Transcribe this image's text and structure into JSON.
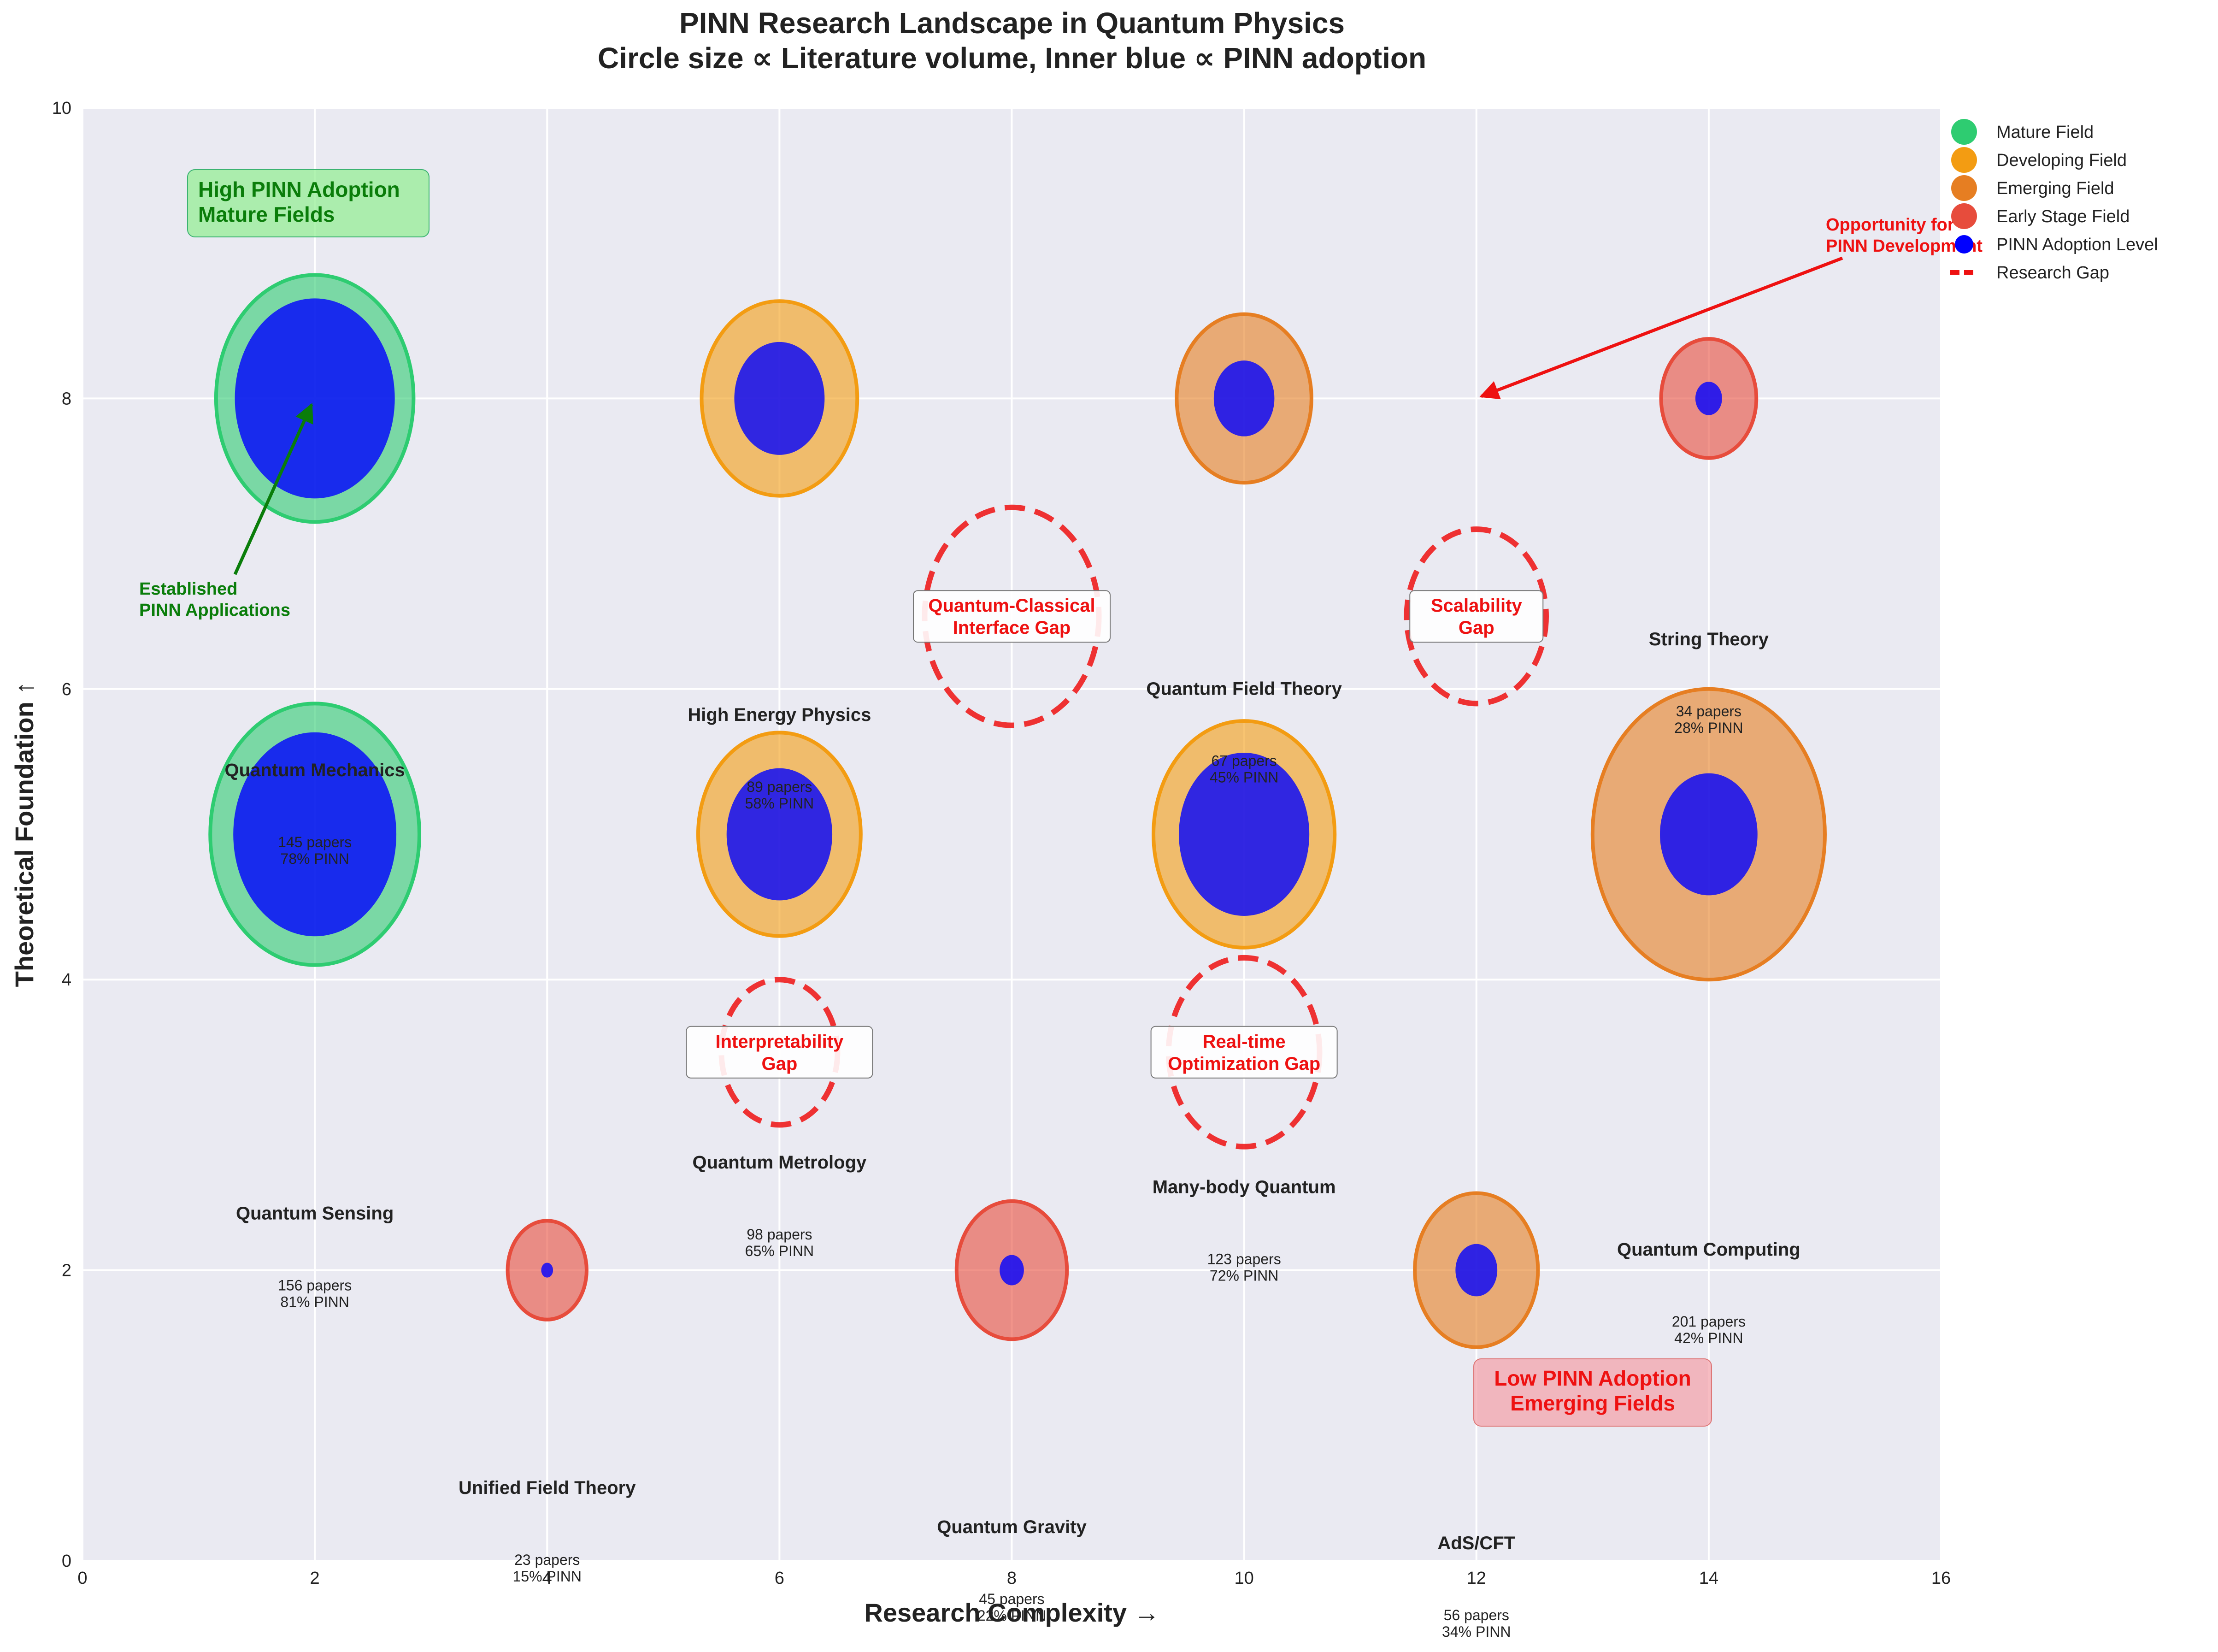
{
  "chart_data": {
    "type": "bubble",
    "title_line1": "PINN Research Landscape in Quantum Physics",
    "title_line2": "Circle size ∝ Literature volume, Inner blue ∝ PINN adoption",
    "xlabel": "Research Complexity →",
    "ylabel": "Theoretical Foundation ↑",
    "xlim": [
      0,
      16
    ],
    "ylim": [
      0,
      10
    ],
    "x_ticks": [
      0,
      2,
      4,
      6,
      8,
      10,
      12,
      14,
      16
    ],
    "y_ticks": [
      0,
      2,
      4,
      6,
      8,
      10
    ],
    "grid": true,
    "legend_position": "upper right, outside plot",
    "category_colors": {
      "Mature Field": "#2ecc71",
      "Developing Field": "#f39c12",
      "Emerging Field": "#e67e22",
      "Early Stage Field": "#e74c3c"
    },
    "pinn_color": "#0000ff",
    "gap_color": "#ee1111",
    "bubbles": [
      {
        "x": 2,
        "y": 8,
        "category": "Mature Field",
        "pinn_fraction": 0.81
      },
      {
        "x": 2,
        "y": 5,
        "category": "Mature Field",
        "pinn_fraction": 0.78
      },
      {
        "x": 6,
        "y": 8,
        "category": "Developing Field",
        "pinn_fraction": 0.58
      },
      {
        "x": 6,
        "y": 5,
        "category": "Developing Field",
        "pinn_fraction": 0.65
      },
      {
        "x": 10,
        "y": 8,
        "category": "Emerging Field",
        "pinn_fraction": 0.45
      },
      {
        "x": 10,
        "y": 5,
        "category": "Developing Field",
        "pinn_fraction": 0.72
      },
      {
        "x": 14,
        "y": 8,
        "category": "Early Stage Field",
        "pinn_fraction": 0.28
      },
      {
        "x": 14,
        "y": 5,
        "category": "Emerging Field",
        "pinn_fraction": 0.42
      },
      {
        "x": 4,
        "y": 2,
        "category": "Early Stage Field",
        "pinn_fraction": 0.15
      },
      {
        "x": 8,
        "y": 2,
        "category": "Early Stage Field",
        "pinn_fraction": 0.22
      },
      {
        "x": 12,
        "y": 2,
        "category": "Emerging Field",
        "pinn_fraction": 0.34
      }
    ],
    "field_labels": [
      {
        "name": "Quantum Mechanics",
        "papers": "145 papers",
        "pinn": "78% PINN",
        "x": 2,
        "y": 5.4
      },
      {
        "name": "Quantum Sensing",
        "papers": "156 papers",
        "pinn": "81% PINN",
        "x": 2,
        "y": 2.35
      },
      {
        "name": "High Energy Physics",
        "papers": "89 papers",
        "pinn": "58% PINN",
        "x": 6,
        "y": 5.78
      },
      {
        "name": "Quantum Metrology",
        "papers": "98 papers",
        "pinn": "65% PINN",
        "x": 6,
        "y": 2.7
      },
      {
        "name": "Quantum Field Theory",
        "papers": "67 papers",
        "pinn": "45% PINN",
        "x": 10,
        "y": 5.96
      },
      {
        "name": "Many-body Quantum",
        "papers": "123 papers",
        "pinn": "72% PINN",
        "x": 10,
        "y": 2.53
      },
      {
        "name": "String Theory",
        "papers": "34 papers",
        "pinn": "28% PINN",
        "x": 14,
        "y": 6.3
      },
      {
        "name": "Quantum Computing",
        "papers": "201 papers",
        "pinn": "42% PINN",
        "x": 14,
        "y": 2.1
      },
      {
        "name": "Unified Field Theory",
        "papers": "23 papers",
        "pinn": "15% PINN",
        "x": 4,
        "y": 0.46
      },
      {
        "name": "Quantum Gravity",
        "papers": "45 papers",
        "pinn": "22% PINN",
        "x": 8,
        "y": 0.19
      },
      {
        "name": "AdS/CFT",
        "papers": "56 papers",
        "pinn": "34% PINN",
        "x": 12,
        "y": 0.08
      }
    ],
    "research_gaps": [
      {
        "label_line1": "Quantum-Classical",
        "label_line2": "Interface Gap",
        "x": 8,
        "y": 6.5
      },
      {
        "label_line1": "Scalability",
        "label_line2": "Gap",
        "x": 12,
        "y": 6.5
      },
      {
        "label_line1": "Interpretability",
        "label_line2": "Gap",
        "x": 6,
        "y": 3.5
      },
      {
        "label_line1": "Real-time",
        "label_line2": "Optimization Gap",
        "x": 10,
        "y": 3.5
      }
    ],
    "annotations": {
      "high_adoption_line1": "High PINN Adoption",
      "high_adoption_line2": "Mature Fields",
      "low_adoption_line1": "Low PINN Adoption",
      "low_adoption_line2": "Emerging Fields",
      "established_line1": "Established",
      "established_line2": "PINN Applications",
      "opportunity_line1": "Opportunity for",
      "opportunity_line2": "PINN Development"
    },
    "legend": [
      {
        "label": "Mature Field",
        "color": "#2ecc71",
        "kind": "circle"
      },
      {
        "label": "Developing Field",
        "color": "#f39c12",
        "kind": "circle"
      },
      {
        "label": "Emerging Field",
        "color": "#e67e22",
        "kind": "circle"
      },
      {
        "label": "Early Stage Field",
        "color": "#e74c3c",
        "kind": "circle"
      },
      {
        "label": "PINN Adoption Level",
        "color": "#0000ff",
        "kind": "dot"
      },
      {
        "label": "Research Gap",
        "color": "#ee1111",
        "kind": "dash"
      }
    ]
  }
}
